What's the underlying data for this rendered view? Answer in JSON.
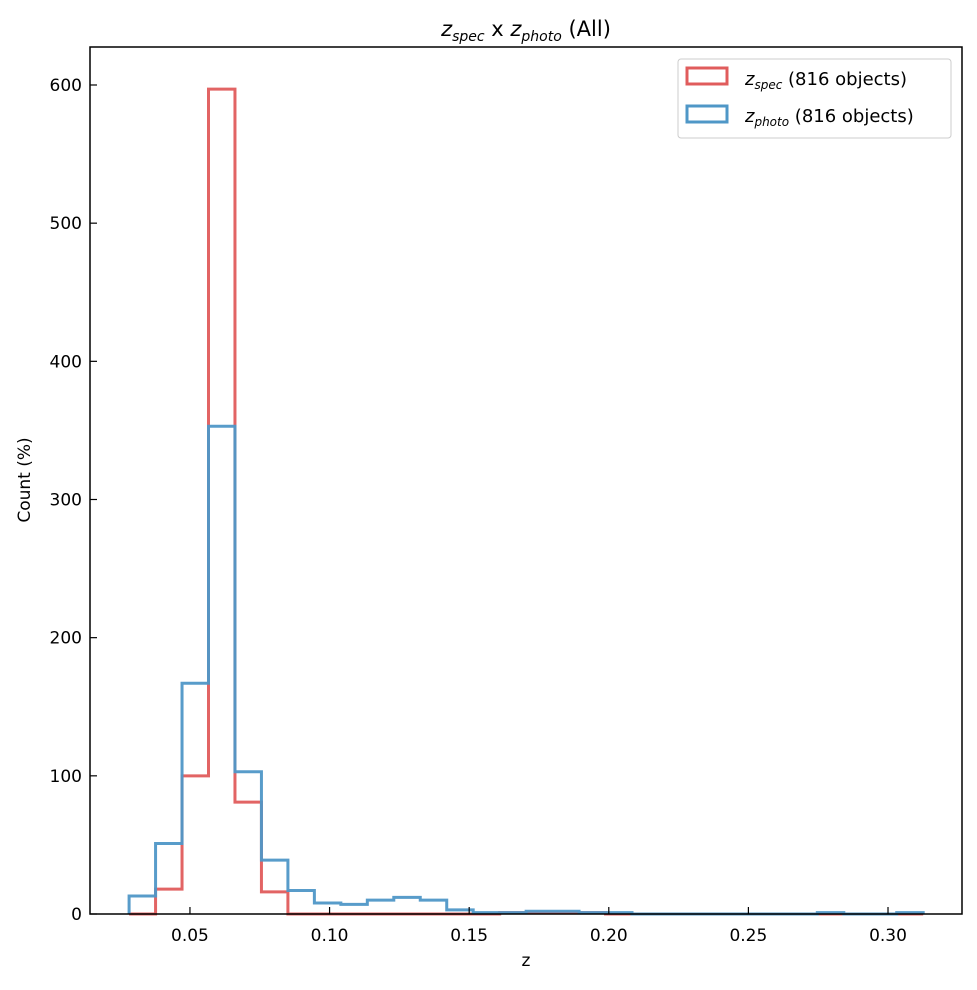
{
  "chart_data": {
    "type": "histogram",
    "title": {
      "base": "z",
      "sub1": "spec",
      "mid": " x ",
      "base2": "z",
      "sub2": "photo",
      "tail": " (All)"
    },
    "xlabel": "z",
    "ylabel": "Count (%)",
    "xlim": [
      0.0142,
      0.3265
    ],
    "ylim": [
      0,
      627.5
    ],
    "xticks": [
      0.05,
      0.1,
      0.15,
      0.2,
      0.25,
      0.3
    ],
    "xtick_labels": [
      "0.05",
      "0.10",
      "0.15",
      "0.20",
      "0.25",
      "0.30"
    ],
    "yticks": [
      0,
      100,
      200,
      300,
      400,
      500,
      600
    ],
    "ytick_labels": [
      "0",
      "100",
      "200",
      "300",
      "400",
      "500",
      "600"
    ],
    "bin_start": 0.0282,
    "bin_width": 0.00948,
    "legend_position": "top-right",
    "series": [
      {
        "name": "z_spec",
        "legend_base": "z",
        "legend_sub": "spec",
        "legend_text": " (816 objects)",
        "color": "#e05c5c",
        "values": [
          0,
          18,
          100,
          597,
          81,
          16,
          0,
          0,
          0,
          0,
          0,
          0,
          0,
          0,
          1,
          1,
          1,
          1,
          0,
          0,
          0,
          0,
          0,
          0,
          0,
          0,
          0,
          0,
          0,
          0
        ]
      },
      {
        "name": "z_photo",
        "legend_base": "z",
        "legend_sub": "photo",
        "legend_text": " (816 objects)",
        "color": "#4f97c7",
        "values": [
          13,
          51,
          167,
          353,
          103,
          39,
          17,
          8,
          7,
          10,
          12,
          10,
          3,
          1,
          1,
          2,
          2,
          1,
          1,
          0,
          0,
          0,
          0,
          0,
          0,
          0,
          1,
          0,
          0,
          1
        ]
      }
    ]
  }
}
